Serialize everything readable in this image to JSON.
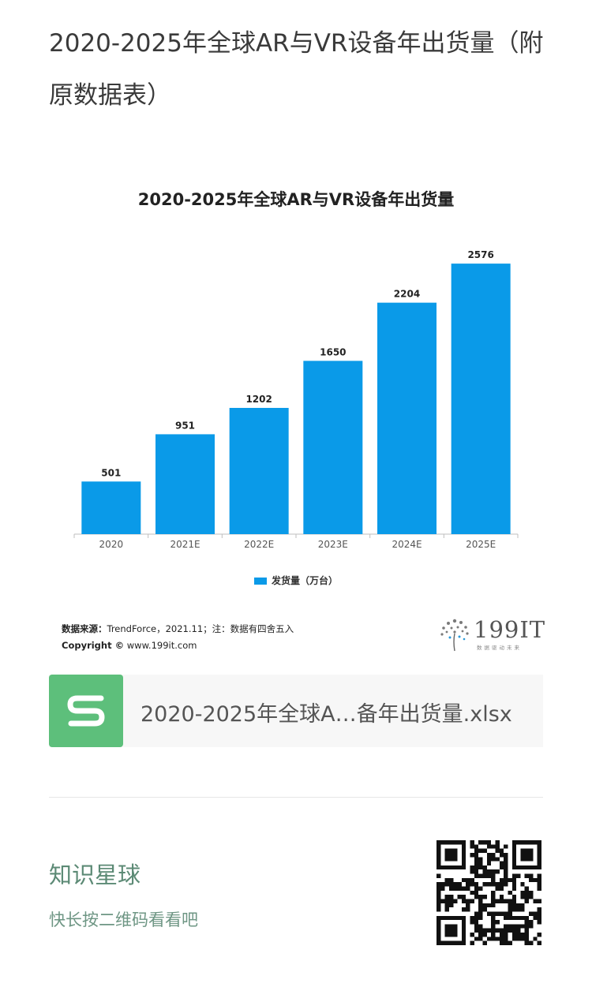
{
  "article": {
    "title": "2020-2025年全球AR与VR设备年出货量（附原数据表）"
  },
  "chart_data": {
    "type": "bar",
    "title": "2020-2025年全球AR与VR设备年出货量",
    "categories": [
      "2020",
      "2021E",
      "2022E",
      "2023E",
      "2024E",
      "2025E"
    ],
    "series": [
      {
        "name": "发货量（万台）",
        "values": [
          501,
          951,
          1202,
          1650,
          2204,
          2576
        ]
      }
    ],
    "ylim": [
      0,
      2900
    ],
    "grid": false,
    "legend_position": "bottom",
    "bar_color": "#0a9ae8"
  },
  "source": {
    "label": "数据来源：",
    "text": "TrendForce，2021.11；注：数据有四舍五入",
    "copyright_label": "Copyright ©",
    "copyright_text": "www.199it.com"
  },
  "logo": {
    "text": "199IT",
    "tagline": "数据驱动未来"
  },
  "attachment": {
    "icon": "spreadsheet-icon",
    "icon_color": "#5dbf7b",
    "file_name": "2020-2025年全球A…备年出货量.xlsx"
  },
  "promo": {
    "title": "知识星球",
    "subtitle": "快长按二维码看看吧",
    "qr_icon": "qr-code-icon"
  }
}
